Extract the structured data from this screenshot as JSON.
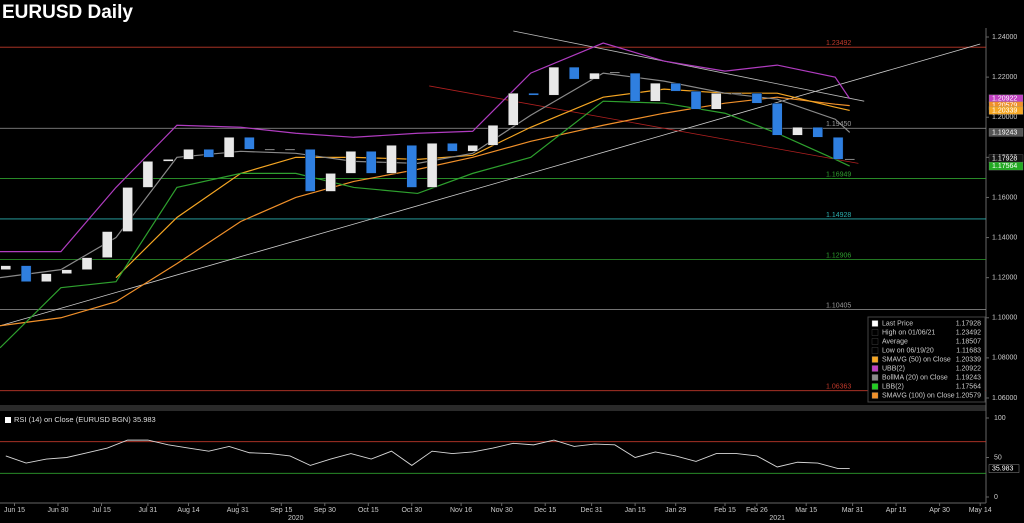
{
  "chart_data": [
    {
      "type": "candlestick",
      "title": "EURUSD Daily",
      "x": [
        "2020-06-12",
        "2020-06-19",
        "2020-06-26",
        "2020-07-03",
        "2020-07-10",
        "2020-07-17",
        "2020-07-24",
        "2020-07-31",
        "2020-08-07",
        "2020-08-14",
        "2020-08-21",
        "2020-08-28",
        "2020-09-04",
        "2020-09-11",
        "2020-09-18",
        "2020-09-25",
        "2020-10-02",
        "2020-10-09",
        "2020-10-16",
        "2020-10-23",
        "2020-10-30",
        "2020-11-06",
        "2020-11-13",
        "2020-11-20",
        "2020-11-27",
        "2020-12-04",
        "2020-12-11",
        "2020-12-18",
        "2020-12-25",
        "2021-01-01",
        "2021-01-08",
        "2021-01-15",
        "2021-01-22",
        "2021-01-29",
        "2021-02-05",
        "2021-02-12",
        "2021-02-19",
        "2021-02-26",
        "2021-03-05",
        "2021-03-12",
        "2021-03-19",
        "2021-03-26",
        "2021-03-30"
      ],
      "open": [
        1.124,
        1.126,
        1.118,
        1.122,
        1.124,
        1.13,
        1.143,
        1.165,
        1.178,
        1.179,
        1.184,
        1.18,
        1.19,
        1.184,
        1.184,
        1.184,
        1.163,
        1.172,
        1.183,
        1.172,
        1.186,
        1.165,
        1.187,
        1.183,
        1.186,
        1.196,
        1.212,
        1.211,
        1.225,
        1.219,
        1.222,
        1.222,
        1.208,
        1.217,
        1.213,
        1.204,
        1.212,
        1.212,
        1.207,
        1.191,
        1.195,
        1.19,
        1.179
      ],
      "close": [
        1.126,
        1.118,
        1.122,
        1.124,
        1.13,
        1.143,
        1.165,
        1.178,
        1.179,
        1.184,
        1.18,
        1.19,
        1.184,
        1.184,
        1.184,
        1.163,
        1.172,
        1.183,
        1.172,
        1.186,
        1.165,
        1.187,
        1.183,
        1.186,
        1.196,
        1.212,
        1.211,
        1.225,
        1.219,
        1.222,
        1.2225,
        1.208,
        1.217,
        1.213,
        1.204,
        1.212,
        1.212,
        1.207,
        1.191,
        1.195,
        1.19,
        1.179,
        1.17928
      ],
      "up_color": "#e8e8e8",
      "down_color": "#2f7fe0",
      "xlim": [
        "2020-06-10",
        "2021-05-16"
      ],
      "xticks": [
        {
          "value": "2020-06-15",
          "label": "Jun 15"
        },
        {
          "value": "2020-06-30",
          "label": "Jun 30"
        },
        {
          "value": "2020-07-15",
          "label": "Jul 15"
        },
        {
          "value": "2020-07-31",
          "label": "Jul 31"
        },
        {
          "value": "2020-08-14",
          "label": "Aug 14"
        },
        {
          "value": "2020-08-31",
          "label": "Aug 31"
        },
        {
          "value": "2020-09-15",
          "label": "Sep 15"
        },
        {
          "value": "2020-09-30",
          "label": "Sep 30"
        },
        {
          "value": "2020-10-15",
          "label": "Oct 15"
        },
        {
          "value": "2020-10-30",
          "label": "Oct 30"
        },
        {
          "value": "2020-11-16",
          "label": "Nov 16"
        },
        {
          "value": "2020-11-30",
          "label": "Nov 30"
        },
        {
          "value": "2020-12-15",
          "label": "Dec 15"
        },
        {
          "value": "2020-12-31",
          "label": "Dec 31"
        },
        {
          "value": "2021-01-15",
          "label": "Jan 15"
        },
        {
          "value": "2021-01-29",
          "label": "Jan 29"
        },
        {
          "value": "2021-02-15",
          "label": "Feb 15"
        },
        {
          "value": "2021-02-26",
          "label": "Feb 26"
        },
        {
          "value": "2021-03-15",
          "label": "Mar 15"
        },
        {
          "value": "2021-03-31",
          "label": "Mar 31"
        },
        {
          "value": "2021-04-15",
          "label": "Apr 15"
        },
        {
          "value": "2021-04-30",
          "label": "Apr 30"
        },
        {
          "value": "2021-05-14",
          "label": "May 14"
        }
      ],
      "year_labels": [
        {
          "value": "2020-09-20",
          "label": "2020"
        },
        {
          "value": "2021-03-05",
          "label": "2021"
        }
      ],
      "ylim": [
        1.0565,
        1.2435
      ],
      "yticks": [
        {
          "value": 1.24,
          "label": "1.24000"
        },
        {
          "value": 1.22,
          "label": "1.22000"
        },
        {
          "value": 1.2,
          "label": "1.20000"
        },
        {
          "value": 1.18,
          "label": "1.18000"
        },
        {
          "value": 1.16,
          "label": "1.16000"
        },
        {
          "value": 1.14,
          "label": "1.14000"
        },
        {
          "value": 1.12,
          "label": "1.12000"
        },
        {
          "value": 1.1,
          "label": "1.10000"
        },
        {
          "value": 1.08,
          "label": "1.08000"
        },
        {
          "value": 1.06,
          "label": "1.06000"
        }
      ],
      "grid": false,
      "levels": [
        {
          "value": 1.23492,
          "label": "1.23492",
          "color": "#c0392b"
        },
        {
          "value": 1.1945,
          "label": "1.19450",
          "color": "#999999"
        },
        {
          "value": 1.16949,
          "label": "1.16949",
          "color": "#2e9e2e"
        },
        {
          "value": 1.14928,
          "label": "1.14928",
          "color": "#2bb0b0"
        },
        {
          "value": 1.12906,
          "label": "1.12906",
          "color": "#2e9e2e"
        },
        {
          "value": 1.10405,
          "label": "1.10405",
          "color": "#999999"
        },
        {
          "value": 1.06363,
          "label": "1.06363",
          "color": "#c0392b"
        }
      ],
      "trend_lines": [
        {
          "color": "#d0d0d0",
          "x": [
            "2020-06-10",
            "2021-05-14"
          ],
          "values": [
            1.096,
            1.2365
          ]
        },
        {
          "color": "#bbbbbb",
          "x": [
            "2020-12-04",
            "2021-04-04"
          ],
          "values": [
            1.243,
            1.208
          ]
        },
        {
          "color": "#b02020",
          "x": [
            "2020-11-05",
            "2021-04-02"
          ],
          "values": [
            1.2156,
            1.177
          ]
        }
      ],
      "overlays": [
        {
          "name": "SMAVG (100)  on Close",
          "color": "#f0902a",
          "x": [
            "2020-06-10",
            "2020-07-01",
            "2020-07-20",
            "2020-08-10",
            "2020-09-01",
            "2020-09-20",
            "2020-10-10",
            "2020-11-01",
            "2020-11-20",
            "2020-12-10",
            "2021-01-04",
            "2021-01-25",
            "2021-02-15",
            "2021-03-05",
            "2021-03-25",
            "2021-03-30"
          ],
          "values": [
            1.096,
            1.1,
            1.108,
            1.127,
            1.148,
            1.16,
            1.168,
            1.174,
            1.18,
            1.188,
            1.196,
            1.202,
            1.207,
            1.21,
            1.2065,
            1.20579
          ]
        },
        {
          "name": "SMAVG (50)  on Close",
          "color": "#f5a623",
          "x": [
            "2020-07-20",
            "2020-08-10",
            "2020-09-01",
            "2020-09-20",
            "2020-10-10",
            "2020-11-01",
            "2020-11-20",
            "2020-12-10",
            "2021-01-04",
            "2021-01-25",
            "2021-02-15",
            "2021-03-05",
            "2021-03-25",
            "2021-03-30"
          ],
          "values": [
            1.12,
            1.15,
            1.172,
            1.18,
            1.18,
            1.179,
            1.181,
            1.195,
            1.21,
            1.214,
            1.212,
            1.212,
            1.205,
            1.20339
          ]
        },
        {
          "name": "UBB(2)",
          "color": "#b03cc0",
          "x": [
            "2020-06-10",
            "2020-07-01",
            "2020-07-20",
            "2020-08-10",
            "2020-09-01",
            "2020-09-20",
            "2020-10-10",
            "2020-11-01",
            "2020-11-20",
            "2020-12-10",
            "2021-01-04",
            "2021-01-25",
            "2021-02-15",
            "2021-03-05",
            "2021-03-25",
            "2021-03-30"
          ],
          "values": [
            1.133,
            1.133,
            1.165,
            1.196,
            1.195,
            1.192,
            1.19,
            1.192,
            1.193,
            1.222,
            1.237,
            1.228,
            1.223,
            1.226,
            1.22,
            1.20922
          ]
        },
        {
          "name": "BollMA (20)  on Close",
          "color": "#8a8a8a",
          "x": [
            "2020-06-10",
            "2020-07-01",
            "2020-07-20",
            "2020-08-10",
            "2020-09-01",
            "2020-09-20",
            "2020-10-10",
            "2020-11-01",
            "2020-11-20",
            "2020-12-10",
            "2021-01-04",
            "2021-01-25",
            "2021-02-15",
            "2021-03-05",
            "2021-03-25",
            "2021-03-30"
          ],
          "values": [
            1.12,
            1.124,
            1.14,
            1.18,
            1.183,
            1.182,
            1.178,
            1.177,
            1.182,
            1.201,
            1.222,
            1.218,
            1.212,
            1.209,
            1.199,
            1.19243
          ]
        },
        {
          "name": "LBB(2)",
          "color": "#2ea02e",
          "x": [
            "2020-06-10",
            "2020-07-01",
            "2020-07-20",
            "2020-08-10",
            "2020-09-01",
            "2020-09-20",
            "2020-10-10",
            "2020-11-01",
            "2020-11-20",
            "2020-12-10",
            "2021-01-04",
            "2021-01-25",
            "2021-02-15",
            "2021-03-05",
            "2021-03-25",
            "2021-03-30"
          ],
          "values": [
            1.085,
            1.115,
            1.118,
            1.165,
            1.172,
            1.172,
            1.165,
            1.162,
            1.172,
            1.18,
            1.208,
            1.207,
            1.202,
            1.192,
            1.179,
            1.17564
          ]
        }
      ],
      "price_tags": [
        {
          "value": 1.20922,
          "label": "1.20922",
          "color": "#c040c0"
        },
        {
          "value": 1.20579,
          "label": "1.20579",
          "color": "#f0902a"
        },
        {
          "value": 1.20339,
          "label": "1.20339",
          "color": "#f5a623"
        },
        {
          "value": 1.19243,
          "label": "1.19243",
          "color": "#555555"
        },
        {
          "value": 1.17928,
          "label": "1.17928",
          "color": "#111111"
        },
        {
          "value": 1.17564,
          "label": "1.17564",
          "color": "#22aa22"
        }
      ],
      "legend": {
        "position": "lower right",
        "items": [
          {
            "name": "Last Price",
            "value": 1.17928,
            "color": "#ffffff"
          },
          {
            "name": "High on 01/06/21",
            "value": 1.23492,
            "color": "#000000"
          },
          {
            "name": "Average",
            "value": 1.18507,
            "color": "#000000"
          },
          {
            "name": "Low on 06/19/20",
            "value": 1.11683,
            "color": "#000000"
          },
          {
            "name": "SMAVG (50)  on Close",
            "value": 1.20339,
            "color": "#f5a623"
          },
          {
            "name": "UBB(2)",
            "value": 1.20922,
            "color": "#c040c0"
          },
          {
            "name": "BollMA (20)  on Close",
            "value": 1.19243,
            "color": "#8a8a8a"
          },
          {
            "name": "LBB(2)",
            "value": 1.17564,
            "color": "#22cc22"
          },
          {
            "name": "SMAVG (100)  on Close",
            "value": 1.20579,
            "color": "#f0902a"
          }
        ]
      }
    },
    {
      "type": "line",
      "title": "RSI (14)  on Close (EURUSD BGN) 35.983",
      "color": "#d8d8d8",
      "x": [
        "2020-06-12",
        "2020-06-19",
        "2020-06-26",
        "2020-07-03",
        "2020-07-10",
        "2020-07-17",
        "2020-07-24",
        "2020-07-31",
        "2020-08-07",
        "2020-08-14",
        "2020-08-21",
        "2020-08-28",
        "2020-09-04",
        "2020-09-11",
        "2020-09-18",
        "2020-09-25",
        "2020-10-02",
        "2020-10-09",
        "2020-10-16",
        "2020-10-23",
        "2020-10-30",
        "2020-11-06",
        "2020-11-13",
        "2020-11-20",
        "2020-11-27",
        "2020-12-04",
        "2020-12-11",
        "2020-12-18",
        "2020-12-25",
        "2021-01-01",
        "2021-01-08",
        "2021-01-15",
        "2021-01-22",
        "2021-01-29",
        "2021-02-05",
        "2021-02-12",
        "2021-02-19",
        "2021-02-26",
        "2021-03-05",
        "2021-03-12",
        "2021-03-19",
        "2021-03-26",
        "2021-03-30"
      ],
      "values": [
        52,
        43,
        48,
        50,
        56,
        62,
        72,
        72,
        66,
        62,
        58,
        64,
        56,
        55,
        52,
        40,
        48,
        55,
        48,
        58,
        40,
        58,
        55,
        57,
        62,
        68,
        66,
        72,
        64,
        67,
        66,
        50,
        57,
        52,
        45,
        55,
        55,
        52,
        38,
        44,
        43,
        36,
        35.983
      ],
      "ylim": [
        0,
        100
      ],
      "yticks": [
        0,
        50,
        100
      ],
      "levels": [
        {
          "value": 70,
          "color": "#c0392b"
        },
        {
          "value": 30,
          "color": "#2e9e2e"
        }
      ],
      "price_tag": {
        "value": 35.983,
        "label": "35.983"
      }
    }
  ]
}
